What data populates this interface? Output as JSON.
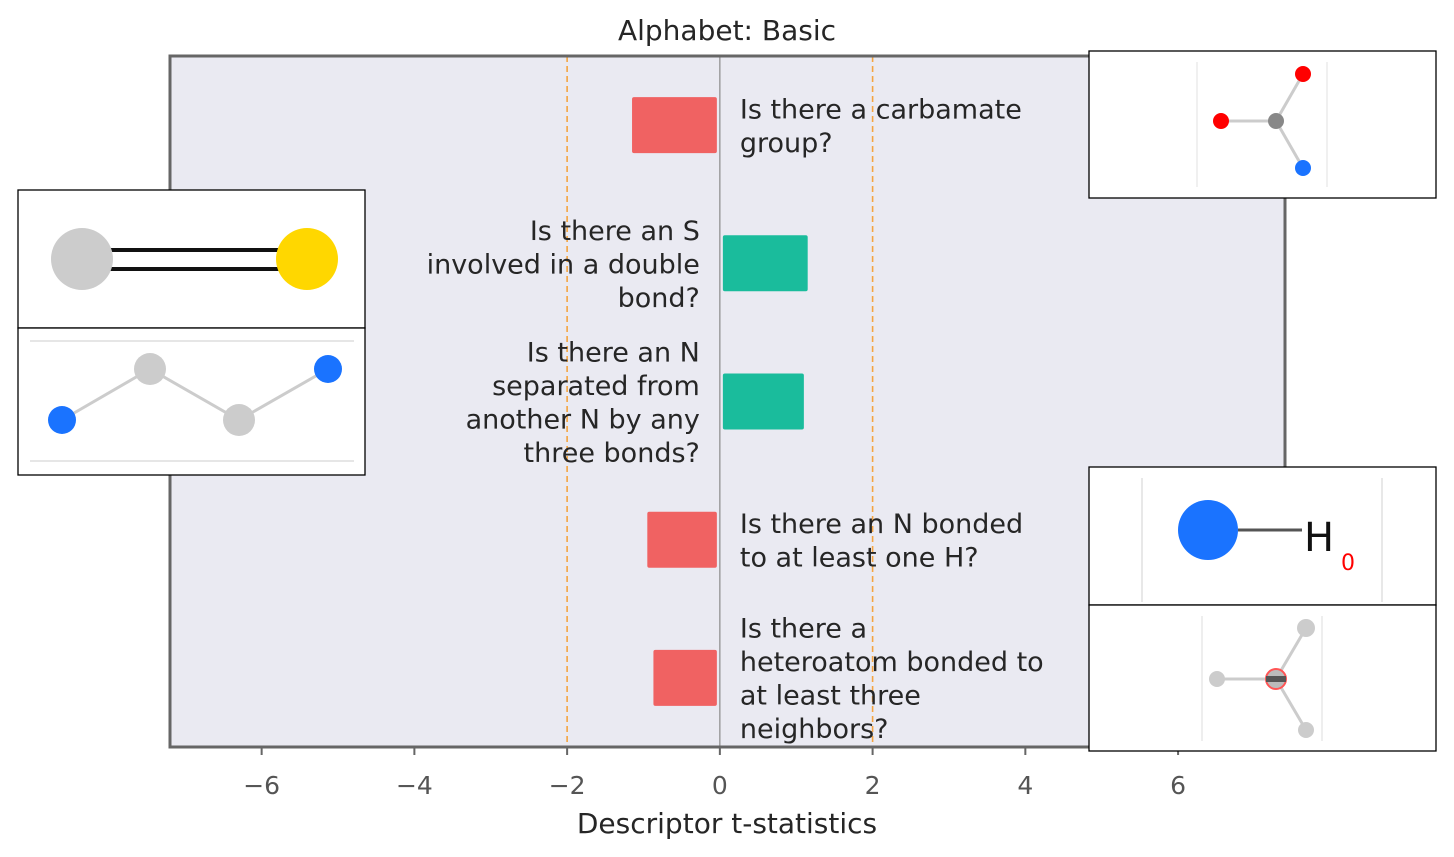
{
  "chart_data": {
    "type": "bar",
    "orientation": "horizontal",
    "title": "Alphabet: Basic",
    "xlabel": "Descriptor t-statistics",
    "ylabel": "",
    "xlim": [
      -7.2,
      7.4
    ],
    "xticks": [
      -6,
      -4,
      -2,
      0,
      2,
      4,
      6
    ],
    "xtick_labels": [
      "−6",
      "−4",
      "−2",
      "0",
      "2",
      "4",
      "6"
    ],
    "reference_lines": [
      -2,
      2
    ],
    "grid": false,
    "categories": [
      "Is there a carbamate group?",
      "Is there an S involved in a double bond?",
      "Is there an N separated from another N by any three bonds?",
      "Is there an N bonded to at least one H?",
      "Is there a heteroatom bonded to at least three neighbors?"
    ],
    "label_lines": [
      [
        "Is there a carbamate",
        "group?"
      ],
      [
        "Is there an S",
        "involved in a double",
        "bond?"
      ],
      [
        "Is there an N",
        "separated from",
        "another N by any",
        "three bonds?"
      ],
      [
        "Is there an N bonded",
        "to at least one H?"
      ],
      [
        "Is there a",
        "heteroatom bonded to",
        "at least three",
        "neighbors?"
      ]
    ],
    "values": [
      -1.15,
      1.15,
      1.1,
      -0.95,
      -0.87
    ],
    "colors": {
      "negative": "#f06262",
      "positive": "#1abc9c",
      "reference_line": "#f4a442",
      "zero_line": "#8a8a8a",
      "plot_background": "#eaeaf2",
      "frame": "#666666"
    },
    "insets": [
      {
        "name": "carbamate-structure-image",
        "depicts": "carbamate fragment with red O atoms and blue N"
      },
      {
        "name": "sulfur-double-bond-structure-image",
        "depicts": "grey C double bonded to yellow S"
      },
      {
        "name": "n-n-three-bond-structure-image",
        "depicts": "blue N atoms separated by three bonds"
      },
      {
        "name": "nh-structure-image",
        "depicts": "blue N bonded to H"
      },
      {
        "name": "heteroatom-three-neighbors-structure-image",
        "depicts": "central atom with three neighbors"
      }
    ],
    "inset_text": {
      "nh_atom": "H",
      "nh_subscript": "0"
    }
  }
}
